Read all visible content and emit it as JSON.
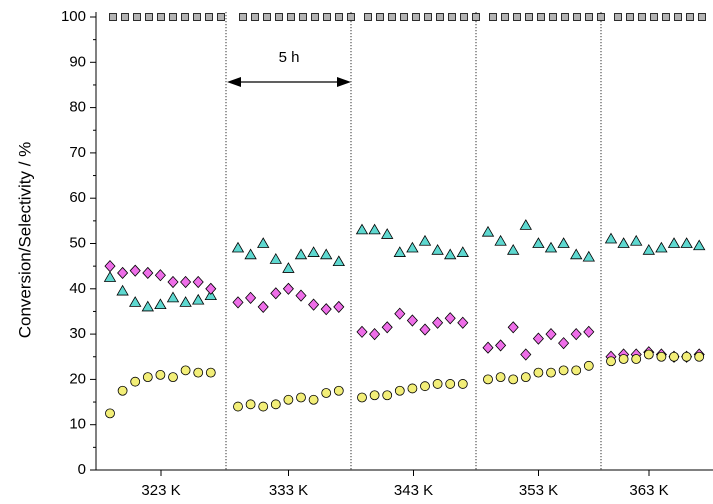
{
  "chart_data": {
    "type": "scatter",
    "ylabel": "Conversion/Selectivity / %",
    "ylim": [
      0,
      100
    ],
    "yticks": [
      "0",
      "10",
      "20",
      "30",
      "40",
      "50",
      "60",
      "70",
      "80",
      "90",
      "100"
    ],
    "categories": [
      "323 K",
      "333 K",
      "343 K",
      "353 K",
      "363 K"
    ],
    "grid": false,
    "annotation": {
      "text": "5 h",
      "span": "333 K"
    },
    "series": [
      {
        "marker": "square",
        "color": "#b4b4b4",
        "values": [
          [
            100,
            100,
            100,
            100,
            100,
            100,
            100,
            100,
            100,
            100
          ],
          [
            100,
            100,
            100,
            100,
            100,
            100,
            100,
            100,
            100,
            100
          ],
          [
            100,
            100,
            100,
            100,
            100,
            100,
            100,
            100,
            100,
            100
          ],
          [
            100,
            100,
            100,
            100,
            100,
            100,
            100,
            100,
            100,
            100
          ],
          [
            100,
            100,
            100,
            100,
            100,
            100,
            100,
            100,
            100,
            100
          ]
        ]
      },
      {
        "marker": "triangle",
        "color": "#5ed8d0",
        "values": [
          [
            42.5,
            39.5,
            37,
            36,
            36.5,
            38,
            37,
            37.5,
            38.5
          ],
          [
            49,
            47.5,
            50,
            46.5,
            44.5,
            47.5,
            48,
            47.5,
            46
          ],
          [
            53,
            53,
            52,
            48,
            49,
            50.5,
            48.5,
            47.5,
            48
          ],
          [
            52.5,
            50.5,
            48.5,
            54,
            50,
            49,
            50,
            47.5,
            47
          ],
          [
            51,
            50,
            50.5,
            48.5,
            49,
            50,
            50,
            49.5,
            49.5
          ]
        ]
      },
      {
        "marker": "diamond",
        "color": "#ee6ee8",
        "values": [
          [
            45,
            43.5,
            44,
            43.5,
            43,
            41.5,
            41.5,
            41.5,
            40
          ],
          [
            37,
            38,
            36,
            39,
            40,
            38.5,
            36.5,
            35.5,
            36
          ],
          [
            30.5,
            30,
            31.5,
            34.5,
            33,
            31,
            32.5,
            33.5,
            32.5
          ],
          [
            27,
            27.5,
            31.5,
            25.5,
            29,
            30,
            28,
            30,
            30.5
          ],
          [
            25,
            25.5,
            25.5,
            26,
            25.5,
            25,
            25,
            25.5,
            25
          ]
        ]
      },
      {
        "marker": "circle",
        "color": "#f2ee78",
        "values": [
          [
            12.5,
            17.5,
            19.5,
            20.5,
            21,
            20.5,
            22,
            21.5,
            21.5
          ],
          [
            14,
            14.5,
            14,
            14.5,
            15.5,
            16,
            15.5,
            17,
            17.5
          ],
          [
            16,
            16.5,
            16.5,
            17.5,
            18,
            18.5,
            19,
            19,
            19
          ],
          [
            20,
            20.5,
            20,
            20.5,
            21.5,
            21.5,
            22,
            22,
            23
          ],
          [
            24,
            24.5,
            24.5,
            25.5,
            25,
            25,
            25,
            25,
            25
          ]
        ]
      }
    ]
  }
}
